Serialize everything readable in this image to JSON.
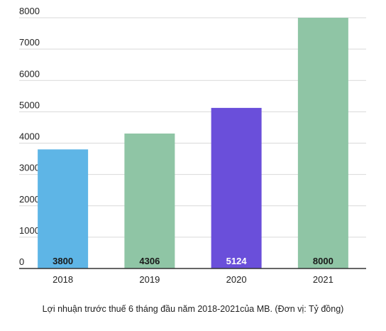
{
  "caption": "Lợi nhuận trước thuế 6 tháng đầu năm 2018-2021của MB. (Đơn vị: Tỷ đồng)",
  "chart_data": {
    "type": "bar",
    "categories": [
      "2018",
      "2019",
      "2020",
      "2021"
    ],
    "values": [
      3800,
      4306,
      5124,
      8000
    ],
    "data_labels": [
      "3800",
      "4306",
      "5124",
      "8000"
    ],
    "bar_colors": [
      "#5EB5E6",
      "#8FC5A5",
      "#6A4FDA",
      "#8FC5A5"
    ],
    "label_colors": [
      "#1a1a1a",
      "#1a1a1a",
      "#ffffff",
      "#1a1a1a"
    ],
    "ylim": [
      0,
      8000
    ],
    "yticks": [
      0,
      1000,
      2000,
      3000,
      4000,
      5000,
      6000,
      7000,
      8000
    ],
    "grid": true,
    "legend": "none"
  }
}
